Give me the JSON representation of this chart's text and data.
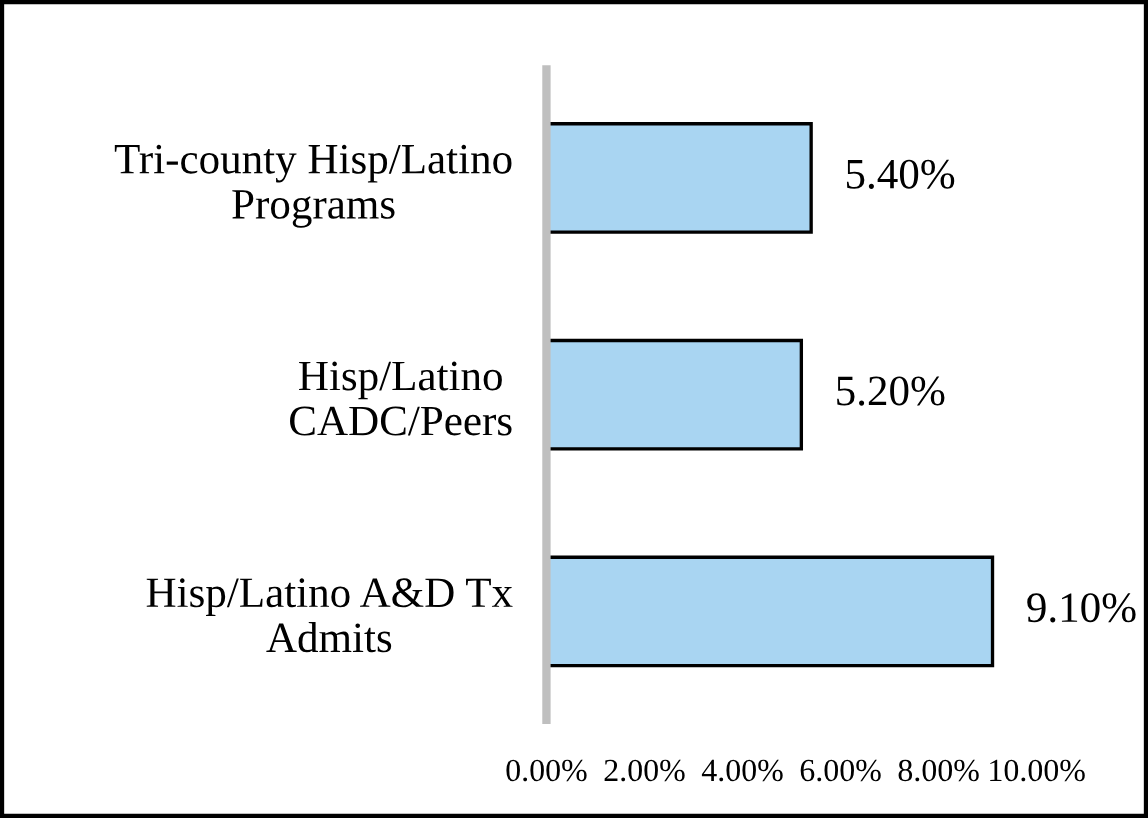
{
  "chart_data": {
    "type": "bar",
    "orientation": "horizontal",
    "categories": [
      "Tri-county Hisp/Latino\nPrograms",
      "Hisp/Latino\nCADC/Peers",
      "Hisp/Latino A&D Tx\nAdmits"
    ],
    "values": [
      5.4,
      5.2,
      9.1
    ],
    "color": "#a9d5f2",
    "value_labels": [
      "5.40%",
      "5.20%",
      "9.10%"
    ],
    "xlim": [
      0,
      10
    ],
    "xticks": [
      {
        "value": 0,
        "label": "0.00%"
      },
      {
        "value": 2,
        "label": "2.00%"
      },
      {
        "value": 4,
        "label": "4.00%"
      },
      {
        "value": 6,
        "label": "6.00%"
      },
      {
        "value": 8,
        "label": "8.00%"
      },
      {
        "value": 10,
        "label": "10.00%"
      }
    ],
    "grid": false,
    "legend": false
  }
}
